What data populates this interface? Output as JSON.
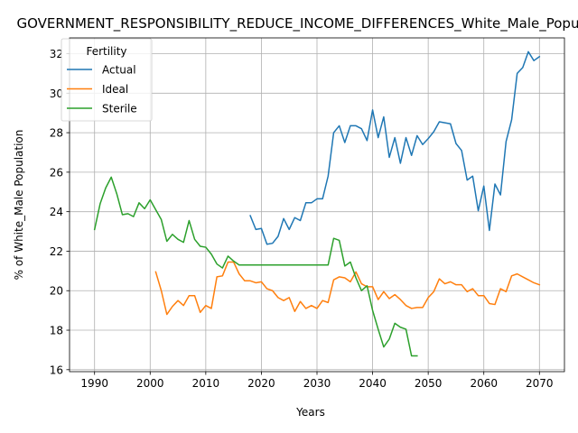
{
  "chart_data": {
    "type": "line",
    "title": "GOVERNMENT_RESPONSIBILITY_REDUCE_INCOME_DIFFERENCES_White_Male_Population",
    "xlabel": "Years",
    "ylabel": "% of White_Male Population",
    "xlim": [
      1985.5,
      2074.5
    ],
    "ylim": [
      15.9,
      32.8
    ],
    "xticks": [
      1990,
      2000,
      2010,
      2020,
      2030,
      2040,
      2050,
      2060,
      2070
    ],
    "yticks": [
      16,
      18,
      20,
      22,
      24,
      26,
      28,
      30,
      32
    ],
    "grid": true,
    "legend": {
      "title": "Fertility",
      "position": "top-left"
    },
    "series": [
      {
        "name": "Actual",
        "color": "#1f77b4",
        "x": [
          2018,
          2019,
          2020,
          2021,
          2022,
          2023,
          2024,
          2025,
          2026,
          2027,
          2028,
          2029,
          2030,
          2031,
          2032,
          2033,
          2034,
          2035,
          2036,
          2037,
          2038,
          2039,
          2040,
          2041,
          2042,
          2043,
          2044,
          2045,
          2046,
          2047,
          2048,
          2049,
          2050,
          2051,
          2052,
          2053,
          2054,
          2055,
          2056,
          2057,
          2058,
          2059,
          2060,
          2061,
          2062,
          2063,
          2064,
          2065,
          2066,
          2067,
          2068,
          2069,
          2070
        ],
        "y": [
          23.8,
          23.1,
          23.15,
          22.35,
          22.4,
          22.75,
          23.65,
          23.1,
          23.7,
          23.55,
          24.45,
          24.45,
          24.65,
          24.65,
          25.8,
          28.0,
          28.35,
          27.5,
          28.35,
          28.35,
          28.2,
          27.6,
          29.15,
          27.75,
          28.8,
          26.75,
          27.75,
          26.45,
          27.75,
          26.85,
          27.85,
          27.4,
          27.7,
          28.05,
          28.55,
          28.5,
          28.45,
          27.45,
          27.1,
          25.6,
          25.8,
          24.05,
          25.3,
          23.05,
          25.4,
          24.85,
          27.55,
          28.65,
          31.0,
          31.3,
          32.1,
          31.65,
          31.85
        ]
      },
      {
        "name": "Ideal",
        "color": "#ff7f0e",
        "x": [
          2001,
          2002,
          2003,
          2004,
          2005,
          2006,
          2007,
          2008,
          2009,
          2010,
          2011,
          2012,
          2013,
          2014,
          2015,
          2016,
          2017,
          2018,
          2019,
          2020,
          2021,
          2022,
          2023,
          2024,
          2025,
          2026,
          2027,
          2028,
          2029,
          2030,
          2031,
          2032,
          2033,
          2034,
          2035,
          2036,
          2037,
          2038,
          2039,
          2040,
          2041,
          2042,
          2043,
          2044,
          2045,
          2046,
          2047,
          2048,
          2049,
          2050,
          2051,
          2052,
          2053,
          2054,
          2055,
          2056,
          2057,
          2058,
          2059,
          2060,
          2061,
          2062,
          2063,
          2064,
          2065,
          2066,
          2067,
          2068,
          2069,
          2070
        ],
        "y": [
          20.95,
          20.0,
          18.8,
          19.2,
          19.5,
          19.25,
          19.75,
          19.75,
          18.9,
          19.25,
          19.1,
          20.7,
          20.75,
          21.45,
          21.45,
          20.85,
          20.5,
          20.5,
          20.4,
          20.45,
          20.1,
          20.0,
          19.65,
          19.5,
          19.65,
          18.95,
          19.45,
          19.1,
          19.25,
          19.1,
          19.5,
          19.4,
          20.55,
          20.7,
          20.65,
          20.45,
          20.95,
          20.35,
          20.2,
          20.2,
          19.55,
          19.95,
          19.6,
          19.8,
          19.55,
          19.25,
          19.1,
          19.15,
          19.15,
          19.65,
          19.95,
          20.6,
          20.35,
          20.45,
          20.3,
          20.3,
          19.95,
          20.1,
          19.75,
          19.75,
          19.35,
          19.3,
          20.1,
          19.95,
          20.75,
          20.85,
          20.7,
          20.55,
          20.4,
          20.3
        ]
      },
      {
        "name": "Sterile",
        "color": "#2ca02c",
        "x": [
          1990,
          1991,
          1992,
          1993,
          1994,
          1995,
          1996,
          1997,
          1998,
          1999,
          2000,
          2001,
          2002,
          2003,
          2004,
          2005,
          2006,
          2007,
          2008,
          2009,
          2010,
          2011,
          2012,
          2013,
          2014,
          2015,
          2016,
          2017,
          2018,
          2019,
          2020,
          2021,
          2022,
          2023,
          2024,
          2025,
          2026,
          2027,
          2028,
          2029,
          2030,
          2031,
          2032,
          2033,
          2034,
          2035,
          2036,
          2037,
          2038,
          2039,
          2040,
          2041,
          2042,
          2043,
          2044,
          2045,
          2046,
          2047,
          2048
        ],
        "y": [
          23.1,
          24.4,
          25.2,
          25.75,
          24.9,
          23.85,
          23.9,
          23.75,
          24.45,
          24.15,
          24.6,
          24.1,
          23.6,
          22.5,
          22.85,
          22.6,
          22.45,
          23.55,
          22.6,
          22.25,
          22.2,
          21.85,
          21.35,
          21.15,
          21.75,
          21.5,
          21.3,
          21.3,
          21.3,
          21.3,
          21.3,
          21.3,
          21.3,
          21.3,
          21.3,
          21.3,
          21.3,
          21.3,
          21.3,
          21.3,
          21.3,
          21.3,
          21.3,
          22.65,
          22.55,
          21.25,
          21.45,
          20.65,
          20.0,
          20.25,
          19.0,
          18.05,
          17.15,
          17.55,
          18.35,
          18.15,
          18.05,
          16.7,
          16.7
        ]
      }
    ]
  }
}
